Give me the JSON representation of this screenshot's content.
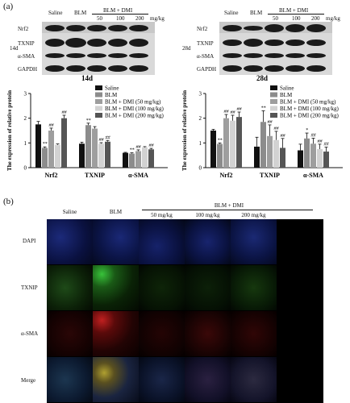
{
  "panel_a": {
    "label": "(a)",
    "blots": [
      {
        "timepoint": "14d",
        "groups": [
          "Saline",
          "BLM"
        ],
        "dmi_label": "BLM + DMI",
        "doses": [
          "50",
          "100",
          "200"
        ],
        "dose_unit": "mg/kg",
        "proteins": [
          "Nrf2",
          "TXNIP",
          "α-SMA",
          "GAPDH"
        ]
      },
      {
        "timepoint": "28d",
        "groups": [
          "Saline",
          "BLM"
        ],
        "dmi_label": "BLM + DMI",
        "doses": [
          "50",
          "100",
          "200"
        ],
        "dose_unit": "mg/kg",
        "proteins": [
          "Nrf2",
          "TXNIP",
          "α-SMA",
          "GAPDH"
        ]
      }
    ]
  },
  "chart_data": [
    {
      "type": "bar",
      "title": "14d",
      "ylabel": "The expression of relative protein",
      "ylim": [
        0,
        3
      ],
      "yticks": [
        "0",
        "1",
        "2",
        "3"
      ],
      "categories": [
        "Nrf2",
        "TXNIP",
        "α-SMA"
      ],
      "series": [
        {
          "name": "Saline",
          "color": "#111111",
          "values": [
            1.75,
            0.97,
            0.6
          ],
          "err": [
            0.12,
            0.06,
            0.02
          ],
          "marks": [
            "",
            "",
            ""
          ]
        },
        {
          "name": "BLM",
          "color": "#8c8c8c",
          "values": [
            0.8,
            1.72,
            0.57
          ],
          "err": [
            0.04,
            0.08,
            0.03
          ],
          "marks": [
            "**",
            "**",
            "**"
          ]
        },
        {
          "name": "BLM + DMI (50 mg/kg)",
          "color": "#9e9e9e",
          "values": [
            1.5,
            1.58,
            0.67
          ],
          "err": [
            0.1,
            0.08,
            0.05
          ],
          "marks": [
            "##",
            "",
            "##"
          ]
        },
        {
          "name": "BLM + DMI (100 mg/kg)",
          "color": "#d2d2d2",
          "values": [
            0.92,
            0.97,
            0.82
          ],
          "err": [
            0.04,
            0.04,
            0.03
          ],
          "marks": [
            "",
            "##",
            ""
          ]
        },
        {
          "name": "BLM + DMI (200 mg/kg)",
          "color": "#555555",
          "values": [
            2.0,
            1.05,
            0.74
          ],
          "err": [
            0.12,
            0.05,
            0.04
          ],
          "marks": [
            "##",
            "##",
            "##"
          ]
        }
      ]
    },
    {
      "type": "bar",
      "title": "28d",
      "ylabel": "The expression of relative protein",
      "ylim": [
        0,
        3
      ],
      "yticks": [
        "0",
        "1",
        "2",
        "3"
      ],
      "categories": [
        "Nrf2",
        "TXNIP",
        "α-SMA"
      ],
      "series": [
        {
          "name": "Saline",
          "color": "#111111",
          "values": [
            1.5,
            0.85,
            0.7
          ],
          "err": [
            0.05,
            0.38,
            0.25
          ],
          "marks": [
            "",
            "",
            ""
          ]
        },
        {
          "name": "BLM",
          "color": "#8c8c8c",
          "values": [
            0.96,
            1.85,
            1.18
          ],
          "err": [
            0.04,
            0.45,
            0.22
          ],
          "marks": [
            "**",
            "**",
            "*"
          ]
        },
        {
          "name": "BLM + DMI (50 mg/kg)",
          "color": "#9e9e9e",
          "values": [
            2.0,
            1.28,
            0.97
          ],
          "err": [
            0.15,
            0.45,
            0.22
          ],
          "marks": [
            "##",
            "##",
            "##"
          ]
        },
        {
          "name": "BLM + DMI (100 mg/kg)",
          "color": "#d2d2d2",
          "values": [
            1.9,
            1.12,
            0.75
          ],
          "err": [
            0.22,
            0.35,
            0.2
          ],
          "marks": [
            "##",
            "##",
            "##"
          ]
        },
        {
          "name": "BLM + DMI (200 mg/kg)",
          "color": "#555555",
          "values": [
            2.05,
            0.8,
            0.65
          ],
          "err": [
            0.2,
            0.38,
            0.18
          ],
          "marks": [
            "##",
            "##",
            "##"
          ]
        }
      ]
    }
  ],
  "panel_b": {
    "label": "(b)",
    "dmi_label": "BLM + DMI",
    "columns": [
      "Saline",
      "BLM",
      "50 mg/kg",
      "100 mg/kg",
      "200 mg/kg"
    ],
    "rows": [
      "DAPI",
      "TXNIP",
      "α-SMA",
      "Merge"
    ]
  }
}
